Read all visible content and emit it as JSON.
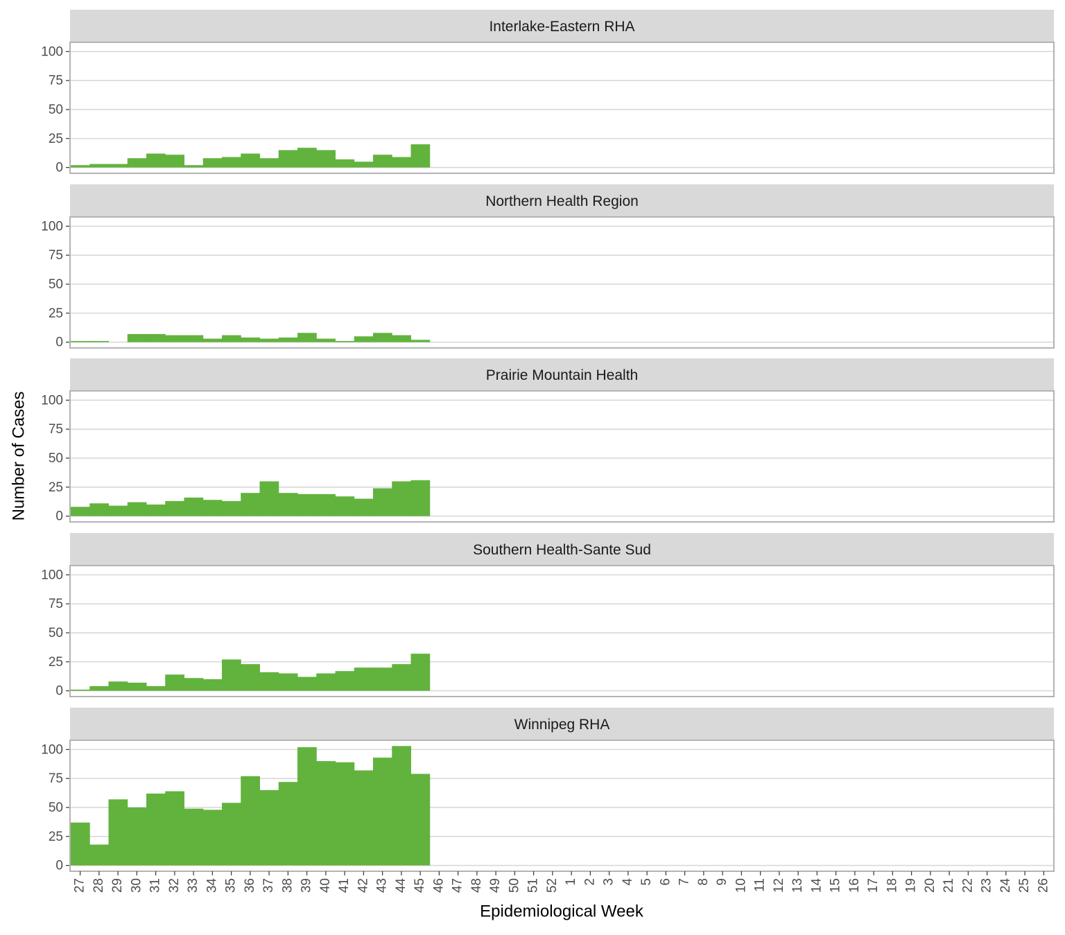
{
  "chart_data": {
    "type": "bar",
    "x_label": "Epidemiological Week",
    "y_label": "Number of Cases",
    "color": "#5aaf34",
    "grid": true,
    "ylim": [
      -5,
      108
    ],
    "yticks": [
      0,
      25,
      50,
      75,
      100
    ],
    "categories": [
      27,
      28,
      29,
      30,
      31,
      32,
      33,
      34,
      35,
      36,
      37,
      38,
      39,
      40,
      41,
      42,
      43,
      44,
      45,
      46,
      47,
      48,
      49,
      50,
      51,
      52,
      1,
      2,
      3,
      4,
      5,
      6,
      7,
      8,
      9,
      10,
      11,
      12,
      13,
      14,
      15,
      16,
      17,
      18,
      19,
      20,
      21,
      22,
      23,
      24,
      25,
      26
    ],
    "panels": [
      {
        "title": "Interlake-Eastern RHA",
        "values": [
          2,
          3,
          3,
          8,
          12,
          11,
          2,
          8,
          9,
          12,
          8,
          15,
          17,
          15,
          7,
          5,
          11,
          9,
          20,
          null,
          null,
          null,
          null,
          null,
          null,
          null,
          null,
          null,
          null,
          null,
          null,
          null,
          null,
          null,
          null,
          null,
          null,
          null,
          null,
          null,
          null,
          null,
          null,
          null,
          null,
          null,
          null,
          null,
          null,
          null,
          null,
          null
        ]
      },
      {
        "title": "Northern Health Region",
        "values": [
          1,
          1,
          0,
          7,
          7,
          6,
          6,
          3,
          6,
          4,
          3,
          4,
          8,
          3,
          1,
          5,
          8,
          6,
          2,
          null,
          null,
          null,
          null,
          null,
          null,
          null,
          null,
          null,
          null,
          null,
          null,
          null,
          null,
          null,
          null,
          null,
          null,
          null,
          null,
          null,
          null,
          null,
          null,
          null,
          null,
          null,
          null,
          null,
          null,
          null,
          null,
          null
        ]
      },
      {
        "title": "Prairie Mountain Health",
        "values": [
          8,
          11,
          9,
          12,
          10,
          13,
          16,
          14,
          13,
          20,
          30,
          20,
          19,
          19,
          17,
          15,
          24,
          30,
          31,
          null,
          null,
          null,
          null,
          null,
          null,
          null,
          null,
          null,
          null,
          null,
          null,
          null,
          null,
          null,
          null,
          null,
          null,
          null,
          null,
          null,
          null,
          null,
          null,
          null,
          null,
          null,
          null,
          null,
          null,
          null,
          null,
          null
        ]
      },
      {
        "title": "Southern Health-Sante Sud",
        "values": [
          1,
          4,
          8,
          7,
          4,
          14,
          11,
          10,
          27,
          23,
          16,
          15,
          12,
          15,
          17,
          20,
          20,
          23,
          32,
          null,
          null,
          null,
          null,
          null,
          null,
          null,
          null,
          null,
          null,
          null,
          null,
          null,
          null,
          null,
          null,
          null,
          null,
          null,
          null,
          null,
          null,
          null,
          null,
          null,
          null,
          null,
          null,
          null,
          null,
          null,
          null,
          null
        ]
      },
      {
        "title": "Winnipeg RHA",
        "values": [
          37,
          18,
          57,
          50,
          62,
          64,
          49,
          48,
          54,
          77,
          65,
          72,
          102,
          90,
          89,
          82,
          93,
          103,
          79,
          null,
          null,
          null,
          null,
          null,
          null,
          null,
          null,
          null,
          null,
          null,
          null,
          null,
          null,
          null,
          null,
          null,
          null,
          null,
          null,
          null,
          null,
          null,
          null,
          null,
          null,
          null,
          null,
          null,
          null,
          null,
          null,
          null
        ]
      }
    ]
  }
}
